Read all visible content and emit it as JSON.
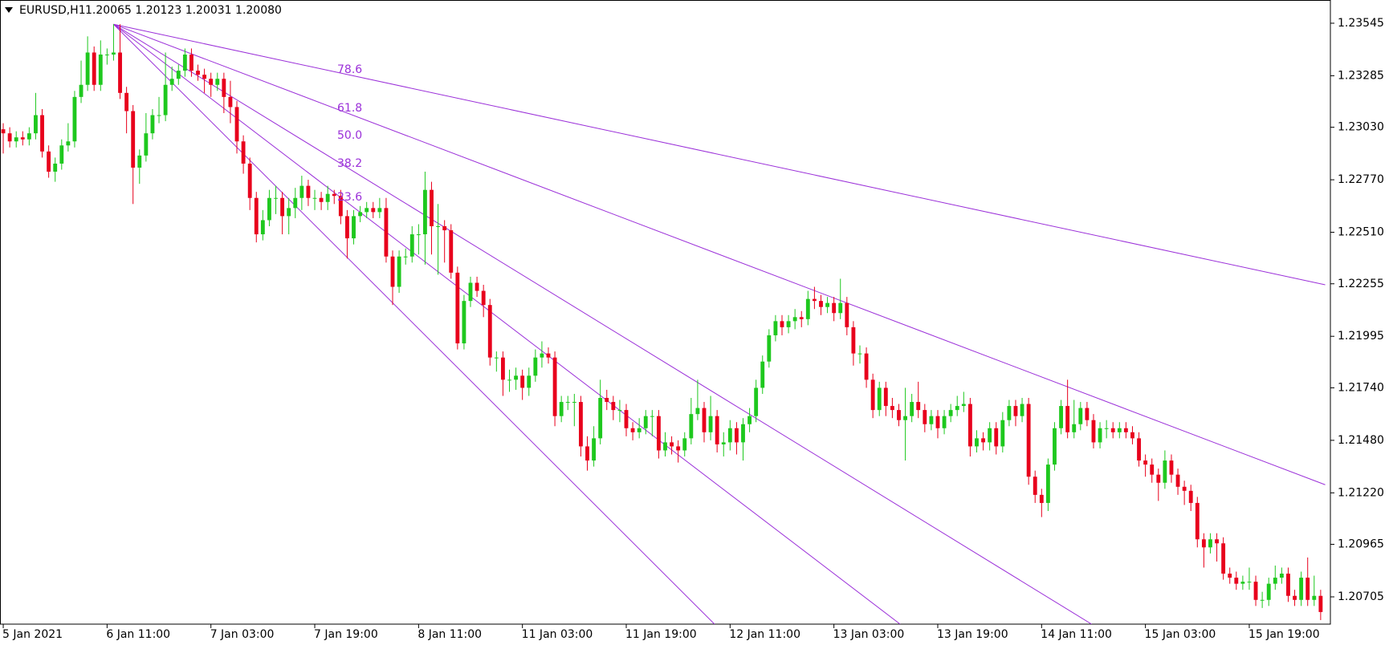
{
  "chart_data": {
    "type": "candlestick",
    "title": "EURUSD,H1",
    "subtitle": "1.20065 1.20123 1.20031 1.20080",
    "up_color": "#1ec81e",
    "down_color": "#e8001c",
    "ylim": [
      1.2057,
      1.2366
    ],
    "yticks": [
      1.23545,
      {
        "value": 1.23285,
        "label": "1.23285"
      },
      {
        "value": 1.2303,
        "label": "1.23030"
      },
      {
        "value": 1.2277,
        "label": "1.22770"
      },
      {
        "value": 1.2251,
        "label": "1.22510"
      },
      1.22255,
      1.21995,
      {
        "value": 1.2174,
        "label": "1.21740"
      },
      {
        "value": 1.2148,
        "label": "1.21480"
      },
      {
        "value": 1.2122,
        "label": "1.21220"
      },
      1.20965,
      1.20705
    ],
    "categories": [
      "5 Jan 2021",
      null,
      null,
      null,
      null,
      null,
      null,
      null,
      null,
      null,
      null,
      null,
      null,
      null,
      null,
      null,
      "6 Jan 11:00",
      null,
      null,
      null,
      null,
      null,
      null,
      null,
      null,
      null,
      null,
      null,
      null,
      null,
      null,
      null,
      "7 Jan 03:00",
      null,
      null,
      null,
      null,
      null,
      null,
      null,
      null,
      null,
      null,
      null,
      null,
      null,
      null,
      null,
      "7 Jan 19:00",
      null,
      null,
      null,
      null,
      null,
      null,
      null,
      null,
      null,
      null,
      null,
      null,
      null,
      null,
      null,
      "8 Jan 11:00",
      null,
      null,
      null,
      null,
      null,
      null,
      null,
      null,
      null,
      null,
      null,
      null,
      null,
      null,
      null,
      "11 Jan 03:00",
      null,
      null,
      null,
      null,
      null,
      null,
      null,
      null,
      null,
      null,
      null,
      null,
      null,
      null,
      null,
      "11 Jan 19:00",
      null,
      null,
      null,
      null,
      null,
      null,
      null,
      null,
      null,
      null,
      null,
      null,
      null,
      null,
      null,
      "12 Jan 11:00",
      null,
      null,
      null,
      null,
      null,
      null,
      null,
      null,
      null,
      null,
      null,
      null,
      null,
      null,
      null,
      "13 Jan 03:00",
      null,
      null,
      null,
      null,
      null,
      null,
      null,
      null,
      null,
      null,
      null,
      null,
      null,
      null,
      null,
      "13 Jan 19:00",
      null,
      null,
      null,
      null,
      null,
      null,
      null,
      null,
      null,
      null,
      null,
      null,
      null,
      null,
      null,
      "14 Jan 11:00",
      null,
      null,
      null,
      null,
      null,
      null,
      null,
      null,
      null,
      null,
      null,
      null,
      null,
      null,
      null,
      "15 Jan 03:00",
      null,
      null,
      null,
      null,
      null,
      null,
      null,
      null,
      null,
      null,
      null,
      null,
      null,
      null,
      null,
      "15 Jan 19:00",
      null,
      null,
      null,
      null,
      null,
      null,
      null,
      null,
      null,
      null,
      null
    ],
    "open": [
      1.2302,
      1.23,
      1.2296,
      1.2298,
      1.2297,
      1.23,
      1.2309,
      1.2291,
      1.2281,
      1.2285,
      1.2294,
      1.2296,
      1.2318,
      1.2324,
      1.234,
      1.2324,
      1.2339,
      1.2339,
      1.234,
      1.232,
      1.2311,
      1.2283,
      1.2289,
      1.23,
      1.2309,
      1.2309,
      1.2324,
      1.2327,
      1.2331,
      1.2339,
      1.2331,
      1.2329,
      1.2327,
      1.2324,
      1.2327,
      1.2318,
      1.2313,
      1.2296,
      1.2285,
      1.2268,
      1.225,
      1.2257,
      1.2268,
      1.2268,
      1.2259,
      1.2263,
      1.2268,
      1.2274,
      1.2268,
      1.2268,
      1.2266,
      1.227,
      1.2269,
      1.2259,
      1.2248,
      1.2259,
      1.2261,
      1.2263,
      1.2261,
      1.2263,
      1.2239,
      1.2224,
      1.2239,
      1.2239,
      1.225,
      1.225,
      1.2272,
      1.2254,
      1.2254,
      1.2252,
      1.2231,
      1.2196,
      1.2217,
      1.2226,
      1.2222,
      1.2215,
      1.2189,
      1.2189,
      1.2178,
      1.2178,
      1.218,
      1.2174,
      1.218,
      1.2189,
      1.2191,
      1.2189,
      1.216,
      1.2167,
      1.2167,
      1.2167,
      1.2145,
      1.2138,
      1.2149,
      1.2169,
      1.2167,
      1.2163,
      1.2163,
      1.2154,
      1.2152,
      1.2154,
      1.216,
      1.216,
      1.2143,
      1.2147,
      1.2145,
      1.2143,
      1.2149,
      1.2161,
      1.2164,
      1.2152,
      1.216,
      1.2146,
      1.2147,
      1.2154,
      1.2147,
      1.2156,
      1.216,
      1.2174,
      1.2187,
      1.22,
      1.2207,
      1.2204,
      1.2207,
      1.2209,
      1.2208,
      1.2218,
      1.2217,
      1.2214,
      1.2216,
      1.2211,
      1.2216,
      1.2204,
      1.2191,
      1.2191,
      1.2178,
      1.2163,
      1.2174,
      1.2165,
      1.2163,
      1.2158,
      1.216,
      1.2167,
      1.2163,
      1.2156,
      1.216,
      1.2154,
      1.216,
      1.2163,
      1.2165,
      1.2166,
      1.2145,
      1.2149,
      1.2147,
      1.2154,
      1.2145,
      1.2158,
      1.2165,
      1.216,
      1.2166,
      1.213,
      1.2121,
      1.2117,
      1.2136,
      1.2154,
      1.2165,
      1.2152,
      1.2156,
      1.2164,
      1.2158,
      1.2147,
      1.2154,
      1.2154,
      1.2152,
      1.2154,
      1.2152,
      1.2149,
      1.2138,
      1.2136,
      1.2131,
      1.2127,
      1.2138,
      1.2131,
      1.2125,
      1.2123,
      1.2117,
      1.2099,
      1.2095,
      1.2099,
      1.2097,
      1.2082,
      1.208,
      1.2077,
      1.2078,
      1.2078,
      1.2069,
      1.2069,
      1.2077,
      1.208,
      1.2082,
      1.2071,
      1.2069,
      1.208,
      1.2069,
      1.2071
    ],
    "high": [
      1.2305,
      1.2303,
      1.2301,
      1.2301,
      1.2303,
      1.232,
      1.2312,
      1.2294,
      1.2288,
      1.2297,
      1.2305,
      1.2321,
      1.2336,
      1.2348,
      1.2343,
      1.2346,
      1.2342,
      1.2354,
      1.2354,
      1.2323,
      1.2314,
      1.2292,
      1.231,
      1.2312,
      1.2318,
      1.234,
      1.2333,
      1.2334,
      1.2342,
      1.2342,
      1.2334,
      1.2332,
      1.233,
      1.233,
      1.233,
      1.2326,
      1.2316,
      1.2299,
      1.2288,
      1.2271,
      1.2262,
      1.2272,
      1.2274,
      1.2271,
      1.2268,
      1.2273,
      1.2279,
      1.2277,
      1.2272,
      1.2271,
      1.2274,
      1.2272,
      1.2272,
      1.2262,
      1.2262,
      1.2264,
      1.2266,
      1.2266,
      1.2268,
      1.2268,
      1.2242,
      1.2242,
      1.2243,
      1.2254,
      1.2255,
      1.2281,
      1.2276,
      1.2265,
      1.2257,
      1.2255,
      1.2234,
      1.222,
      1.2229,
      1.2229,
      1.2225,
      1.2218,
      1.2192,
      1.2192,
      1.2183,
      1.2184,
      1.2183,
      1.2184,
      1.2193,
      1.2197,
      1.2194,
      1.2192,
      1.217,
      1.217,
      1.2171,
      1.217,
      1.215,
      1.2155,
      1.2178,
      1.2173,
      1.217,
      1.2168,
      1.2166,
      1.2157,
      1.2159,
      1.2163,
      1.2163,
      1.2163,
      1.2152,
      1.215,
      1.2148,
      1.2152,
      1.2169,
      1.2178,
      1.2167,
      1.217,
      1.2163,
      1.2152,
      1.2158,
      1.2157,
      1.2159,
      1.2164,
      1.2178,
      1.219,
      1.2203,
      1.221,
      1.221,
      1.221,
      1.2213,
      1.2212,
      1.2222,
      1.2224,
      1.222,
      1.2219,
      1.2219,
      1.2228,
      1.2219,
      1.2207,
      1.2195,
      1.2194,
      1.2181,
      1.2177,
      1.2177,
      1.2169,
      1.2166,
      1.2174,
      1.2171,
      1.2177,
      1.2166,
      1.2163,
      1.2163,
      1.2163,
      1.2166,
      1.217,
      1.2172,
      1.2169,
      1.2153,
      1.2152,
      1.2157,
      1.2157,
      1.2162,
      1.2168,
      1.2168,
      1.2169,
      1.2169,
      1.2133,
      1.2124,
      1.2139,
      1.2157,
      1.2168,
      1.2178,
      1.2168,
      1.2167,
      1.2167,
      1.2161,
      1.2157,
      1.2158,
      1.2157,
      1.2157,
      1.2157,
      1.2155,
      1.2152,
      1.2141,
      1.2139,
      1.2134,
      1.2143,
      1.2141,
      1.2134,
      1.2128,
      1.2126,
      1.212,
      1.2102,
      1.2102,
      1.2102,
      1.21,
      1.2085,
      1.2083,
      1.2081,
      1.2085,
      1.2081,
      1.2073,
      1.208,
      1.2086,
      1.2085,
      1.2085,
      1.2074,
      1.2083,
      1.209,
      1.2081,
      1.2074
    ],
    "low": [
      1.229,
      1.2293,
      1.2293,
      1.2294,
      1.2294,
      1.2297,
      1.2288,
      1.2278,
      1.2276,
      1.2282,
      1.2291,
      1.2293,
      1.2315,
      1.2321,
      1.2321,
      1.2321,
      1.2334,
      1.2336,
      1.2317,
      1.23,
      1.2265,
      1.2275,
      1.2286,
      1.2297,
      1.2305,
      1.2306,
      1.2321,
      1.2324,
      1.2328,
      1.2328,
      1.2326,
      1.232,
      1.2318,
      1.2321,
      1.231,
      1.2305,
      1.229,
      1.228,
      1.2262,
      1.2246,
      1.2247,
      1.2254,
      1.226,
      1.225,
      1.225,
      1.2258,
      1.2262,
      1.2264,
      1.2262,
      1.2262,
      1.2262,
      1.2265,
      1.2255,
      1.2238,
      1.2245,
      1.2256,
      1.2258,
      1.2258,
      1.2258,
      1.2236,
      1.2215,
      1.2221,
      1.2235,
      1.2236,
      1.224,
      1.2235,
      1.224,
      1.223,
      1.2236,
      1.2228,
      1.2193,
      1.2193,
      1.2214,
      1.2219,
      1.2209,
      1.2185,
      1.2182,
      1.217,
      1.2172,
      1.2173,
      1.2168,
      1.217,
      1.2177,
      1.2184,
      1.2186,
      1.2155,
      1.2157,
      1.2163,
      1.2155,
      1.214,
      1.2133,
      1.2135,
      1.2146,
      1.2163,
      1.2158,
      1.2157,
      1.215,
      1.2148,
      1.2149,
      1.2151,
      1.215,
      1.2139,
      1.214,
      1.2141,
      1.2137,
      1.214,
      1.2146,
      1.2158,
      1.2147,
      1.2148,
      1.2142,
      1.214,
      1.2143,
      1.2141,
      1.2138,
      1.2152,
      1.2157,
      1.2171,
      1.2184,
      1.2197,
      1.22,
      1.2201,
      1.2203,
      1.2204,
      1.2205,
      1.2213,
      1.221,
      1.2211,
      1.2207,
      1.2208,
      1.22,
      1.2185,
      1.2186,
      1.2174,
      1.2159,
      1.216,
      1.216,
      1.2159,
      1.2155,
      1.2138,
      1.2157,
      1.2159,
      1.2152,
      1.2153,
      1.2149,
      1.2151,
      1.2157,
      1.216,
      1.2162,
      1.214,
      1.2142,
      1.2143,
      1.2143,
      1.2141,
      1.2142,
      1.2155,
      1.2155,
      1.2157,
      1.2126,
      1.2117,
      1.211,
      1.2113,
      1.2133,
      1.2151,
      1.2149,
      1.2149,
      1.2153,
      1.2155,
      1.2144,
      1.2144,
      1.2149,
      1.2149,
      1.2149,
      1.2149,
      1.2146,
      1.2135,
      1.213,
      1.2127,
      1.2118,
      1.2124,
      1.2127,
      1.2121,
      1.2116,
      1.2113,
      1.2095,
      1.2085,
      1.2092,
      1.2088,
      1.2079,
      1.2077,
      1.2074,
      1.2074,
      1.2074,
      1.2066,
      1.2065,
      1.2066,
      1.2074,
      1.2077,
      1.2068,
      1.2066,
      1.2066,
      1.2066,
      1.2066,
      1.2059
    ],
    "close": [
      1.23,
      1.2296,
      1.2298,
      1.2297,
      1.23,
      1.2309,
      1.2291,
      1.2281,
      1.2285,
      1.2294,
      1.2296,
      1.2318,
      1.2324,
      1.234,
      1.2324,
      1.2339,
      1.2339,
      1.234,
      1.232,
      1.2311,
      1.2283,
      1.2289,
      1.23,
      1.2309,
      1.2309,
      1.2324,
      1.2327,
      1.2331,
      1.2339,
      1.2331,
      1.2329,
      1.2327,
      1.2324,
      1.2327,
      1.2318,
      1.2313,
      1.2296,
      1.2285,
      1.2268,
      1.225,
      1.2257,
      1.2268,
      1.2268,
      1.2259,
      1.2263,
      1.2268,
      1.2274,
      1.2268,
      1.2268,
      1.2266,
      1.227,
      1.2269,
      1.2259,
      1.2248,
      1.2259,
      1.2261,
      1.2263,
      1.2261,
      1.2263,
      1.2239,
      1.2224,
      1.2239,
      1.2239,
      1.225,
      1.225,
      1.2272,
      1.2254,
      1.2254,
      1.2252,
      1.2231,
      1.2196,
      1.2217,
      1.2226,
      1.2222,
      1.2215,
      1.2189,
      1.2189,
      1.2178,
      1.2178,
      1.218,
      1.2174,
      1.218,
      1.2189,
      1.2191,
      1.2189,
      1.216,
      1.2167,
      1.2167,
      1.2167,
      1.2145,
      1.2138,
      1.2149,
      1.2169,
      1.2167,
      1.2163,
      1.2163,
      1.2154,
      1.2152,
      1.2154,
      1.216,
      1.216,
      1.2143,
      1.2147,
      1.2145,
      1.2143,
      1.2149,
      1.2161,
      1.2164,
      1.2152,
      1.216,
      1.2146,
      1.2147,
      1.2154,
      1.2147,
      1.2156,
      1.216,
      1.2174,
      1.2187,
      1.22,
      1.2207,
      1.2204,
      1.2207,
      1.2209,
      1.2208,
      1.2218,
      1.2217,
      1.2214,
      1.2216,
      1.2211,
      1.2216,
      1.2204,
      1.2191,
      1.2191,
      1.2178,
      1.2163,
      1.2174,
      1.2165,
      1.2163,
      1.2158,
      1.216,
      1.2167,
      1.2163,
      1.2156,
      1.216,
      1.2154,
      1.216,
      1.2163,
      1.2165,
      1.2166,
      1.2145,
      1.2149,
      1.2147,
      1.2154,
      1.2145,
      1.2158,
      1.2165,
      1.216,
      1.2166,
      1.213,
      1.2121,
      1.2117,
      1.2136,
      1.2154,
      1.2165,
      1.2152,
      1.2156,
      1.2164,
      1.2158,
      1.2147,
      1.2154,
      1.2154,
      1.2152,
      1.2154,
      1.2152,
      1.2149,
      1.2138,
      1.2136,
      1.2131,
      1.2127,
      1.2138,
      1.2131,
      1.2125,
      1.2123,
      1.2117,
      1.2099,
      1.2095,
      1.2099,
      1.2097,
      1.2082,
      1.208,
      1.2077,
      1.2078,
      1.2078,
      1.2069,
      1.2069,
      1.2077,
      1.208,
      1.2082,
      1.2071,
      1.2069,
      1.208,
      1.2069,
      1.2071,
      1.2063
    ],
    "fan": {
      "color": "#9b30d9",
      "anchor": [
        17,
        1.2354
      ],
      "levels": [
        78.6,
        61.8,
        {
          "value": 50,
          "label": "50.0"
        },
        38.2,
        23.6
      ],
      "ends": [
        [
          203.7,
          1.2225
        ],
        [
          203.7,
          1.2126
        ],
        [
          167.7,
          1.2057
        ],
        [
          138.2,
          1.2057
        ],
        [
          109.6,
          1.2057
        ]
      ]
    }
  }
}
